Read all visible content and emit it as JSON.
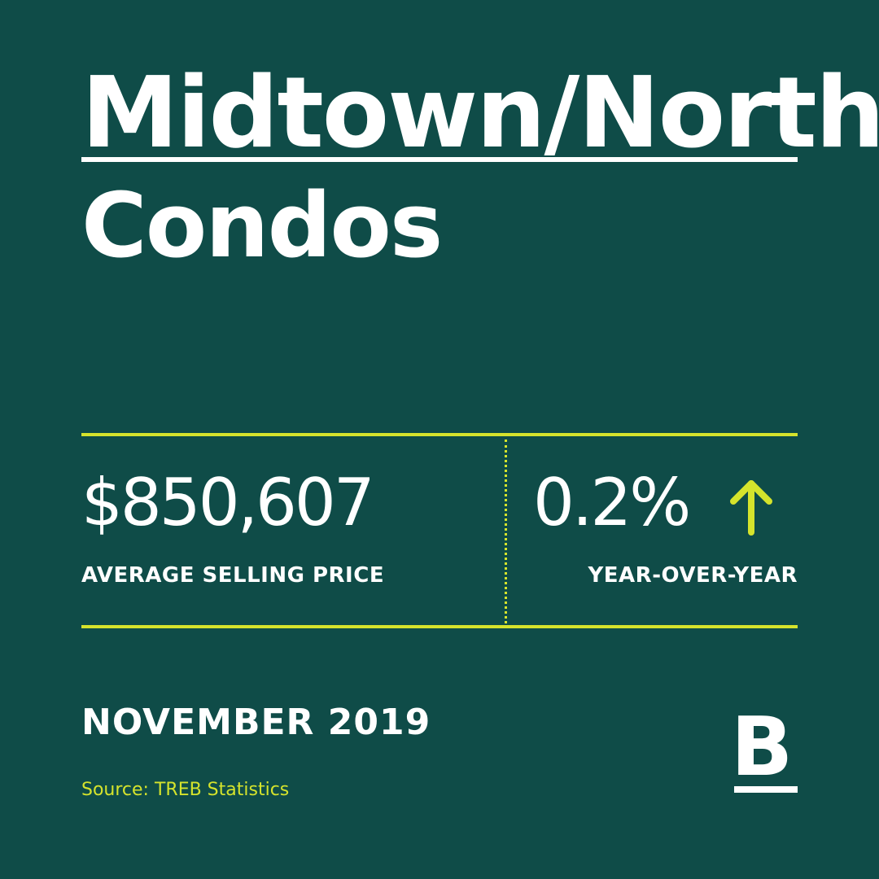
{
  "title": {
    "line1": "Midtown/North",
    "line2": "Condos"
  },
  "stats": {
    "price": "$850,607",
    "price_label": "AVERAGE SELLING PRICE",
    "change": "0.2%",
    "change_direction": "up-arrow-icon",
    "change_label": "YEAR-OVER-YEAR"
  },
  "footer": {
    "date": "NOVEMBER 2019",
    "source": "Source: TREB Statistics",
    "logo": "B"
  },
  "colors": {
    "background": "#0f4c48",
    "accent": "#d5e32c",
    "text": "#ffffff"
  }
}
